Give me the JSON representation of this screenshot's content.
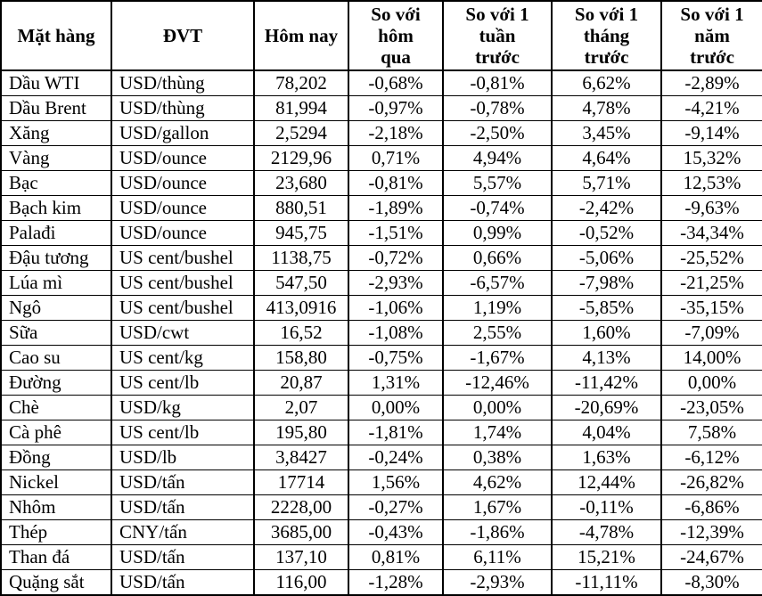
{
  "table": {
    "headers": [
      "Mặt hàng",
      "ĐVT",
      "Hôm nay",
      "So với\nhôm\nqua",
      "So với 1\ntuần\ntrước",
      "So với 1\ntháng\ntrước",
      "So với 1\nnăm\ntrước"
    ],
    "rows": [
      [
        "Dầu WTI",
        "USD/thùng",
        "78,202",
        "-0,68%",
        "-0,81%",
        "6,62%",
        "-2,89%"
      ],
      [
        "Dầu Brent",
        "USD/thùng",
        "81,994",
        "-0,97%",
        "-0,78%",
        "4,78%",
        "-4,21%"
      ],
      [
        "Xăng",
        "USD/gallon",
        "2,5294",
        "-2,18%",
        "-2,50%",
        "3,45%",
        "-9,14%"
      ],
      [
        "Vàng",
        "USD/ounce",
        "2129,96",
        "0,71%",
        "4,94%",
        "4,64%",
        "15,32%"
      ],
      [
        "Bạc",
        "USD/ounce",
        "23,680",
        "-0,81%",
        "5,57%",
        "5,71%",
        "12,53%"
      ],
      [
        "Bạch kim",
        "USD/ounce",
        "880,51",
        "-1,89%",
        "-0,74%",
        "-2,42%",
        "-9,63%"
      ],
      [
        "Palađi",
        "USD/ounce",
        "945,75",
        "-1,51%",
        "0,99%",
        "-0,52%",
        "-34,34%"
      ],
      [
        "Đậu tương",
        "US cent/bushel",
        "1138,75",
        "-0,72%",
        "0,66%",
        "-5,06%",
        "-25,52%"
      ],
      [
        "Lúa mì",
        "US cent/bushel",
        "547,50",
        "-2,93%",
        "-6,57%",
        "-7,98%",
        "-21,25%"
      ],
      [
        "Ngô",
        "US cent/bushel",
        "413,0916",
        "-1,06%",
        "1,19%",
        "-5,85%",
        "-35,15%"
      ],
      [
        "Sữa",
        "USD/cwt",
        "16,52",
        "-1,08%",
        "2,55%",
        "1,60%",
        "-7,09%"
      ],
      [
        "Cao su",
        "US cent/kg",
        "158,80",
        "-0,75%",
        "-1,67%",
        "4,13%",
        "14,00%"
      ],
      [
        "Đường",
        "US cent/lb",
        "20,87",
        "1,31%",
        "-12,46%",
        "-11,42%",
        "0,00%"
      ],
      [
        "Chè",
        "USD/kg",
        "2,07",
        "0,00%",
        "0,00%",
        "-20,69%",
        "-23,05%"
      ],
      [
        "Cà phê",
        "US cent/lb",
        "195,80",
        "-1,81%",
        "1,74%",
        "4,04%",
        "7,58%"
      ],
      [
        "Đồng",
        "USD/lb",
        "3,8427",
        "-0,24%",
        "0,38%",
        "1,63%",
        "-6,12%"
      ],
      [
        "Nickel",
        "USD/tấn",
        "17714",
        "1,56%",
        "4,62%",
        "12,44%",
        "-26,82%"
      ],
      [
        "Nhôm",
        "USD/tấn",
        "2228,00",
        "-0,27%",
        "1,67%",
        "-0,11%",
        "-6,86%"
      ],
      [
        "Thép",
        "CNY/tấn",
        "3685,00",
        "-0,43%",
        "-1,86%",
        "-4,78%",
        "-12,39%"
      ],
      [
        "Than đá",
        "USD/tấn",
        "137,10",
        "0,81%",
        "6,11%",
        "15,21%",
        "-24,67%"
      ],
      [
        "Quặng sắt",
        "USD/tấn",
        "116,00",
        "-1,28%",
        "-2,93%",
        "-11,11%",
        "-8,30%"
      ]
    ],
    "colors": {
      "border": "#000000",
      "text": "#000000",
      "background": "#ffffff"
    }
  }
}
